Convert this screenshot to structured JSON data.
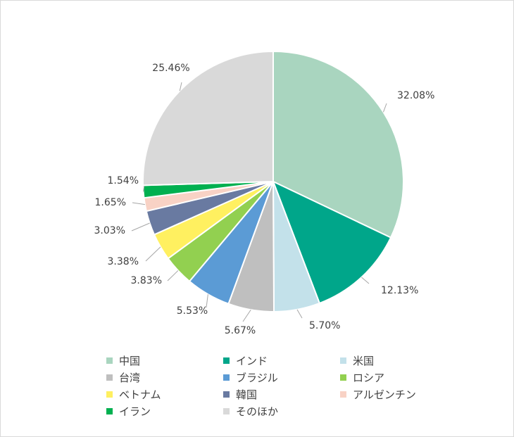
{
  "chart_data": {
    "type": "pie",
    "start_angle_deg": 0,
    "direction": "clockwise",
    "slices": [
      {
        "label": "中国",
        "value": 32.08,
        "value_label": "32.08%",
        "color": "#a9d5bf"
      },
      {
        "label": "インド",
        "value": 12.13,
        "value_label": "12.13%",
        "color": "#00a68a"
      },
      {
        "label": "米国",
        "value": 5.7,
        "value_label": "5.70%",
        "color": "#c3e1ea"
      },
      {
        "label": "台湾",
        "value": 5.67,
        "value_label": "5.67%",
        "color": "#bfbfbf"
      },
      {
        "label": "ブラジル",
        "value": 5.53,
        "value_label": "5.53%",
        "color": "#5b9bd5"
      },
      {
        "label": "ロシア",
        "value": 3.83,
        "value_label": "3.83%",
        "color": "#92d050"
      },
      {
        "label": "ベトナム",
        "value": 3.38,
        "value_label": "3.38%",
        "color": "#fff060"
      },
      {
        "label": "韓国",
        "value": 3.03,
        "value_label": "3.03%",
        "color": "#697aa1"
      },
      {
        "label": "アルゼンチン",
        "value": 1.65,
        "value_label": "1.65%",
        "color": "#f8d2c5"
      },
      {
        "label": "イラン",
        "value": 1.54,
        "value_label": "1.54%",
        "color": "#00b050"
      },
      {
        "label": "そのほか",
        "value": 25.46,
        "value_label": "25.46%",
        "color": "#d9d9d9"
      }
    ],
    "legend_position": "bottom"
  }
}
